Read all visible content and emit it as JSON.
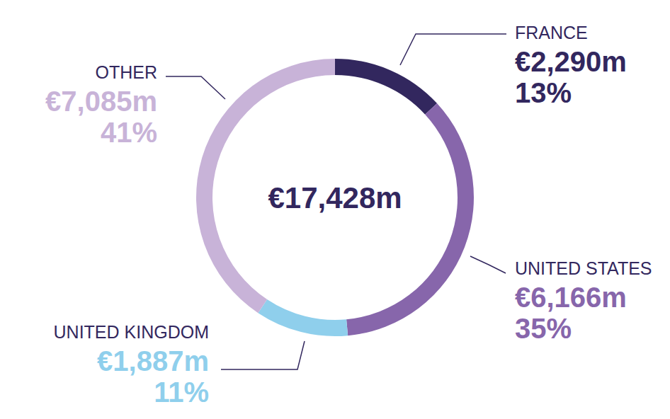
{
  "chart_data": {
    "type": "donut",
    "center_label": "€17,428m",
    "categories": [
      "FRANCE",
      "UNITED STATES",
      "UNITED KINGDOM",
      "OTHER"
    ],
    "values": [
      2290,
      6166,
      1887,
      7085
    ],
    "value_labels": [
      "€2,290m",
      "€6,166m",
      "€1,887m",
      "€7,085m"
    ],
    "percent_labels": [
      "13%",
      "35%",
      "11%",
      "41%"
    ],
    "colors": [
      "#32275e",
      "#8766ab",
      "#8fcfec",
      "#c8b3d8"
    ],
    "data_labels": true
  }
}
